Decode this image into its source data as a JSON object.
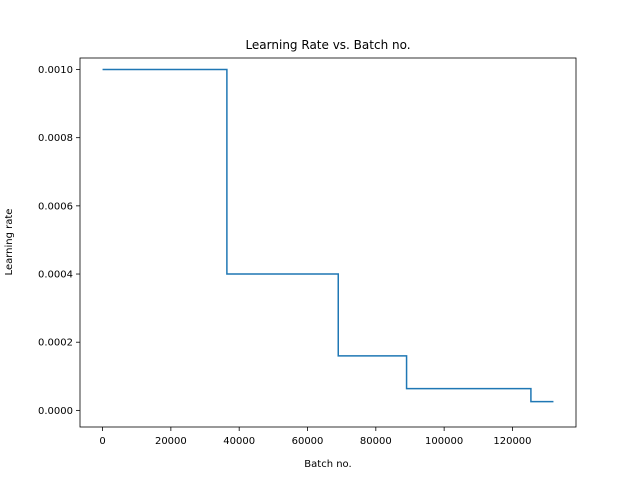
{
  "chart_data": {
    "type": "line",
    "title": "Learning Rate vs. Batch no.",
    "xlabel": "Batch no.",
    "ylabel": "Learning rate",
    "xlim": [
      -6600,
      138600
    ],
    "ylim": [
      -4.875e-05,
      0.00103375
    ],
    "grid": false,
    "legend": "none",
    "xticks": [
      0,
      20000,
      40000,
      60000,
      80000,
      100000,
      120000
    ],
    "xtick_labels": [
      "0",
      "20000",
      "40000",
      "60000",
      "80000",
      "100000",
      "120000"
    ],
    "yticks": [
      0.0,
      0.0002,
      0.0004,
      0.0006,
      0.0008,
      0.001
    ],
    "ytick_labels": [
      "0.0000",
      "0.0002",
      "0.0004",
      "0.0006",
      "0.0008",
      "0.0010"
    ],
    "series": [
      {
        "color": "#1f77b4",
        "x": [
          0,
          36400,
          36400,
          69000,
          69000,
          89000,
          89000,
          125400,
          125400,
          132000
        ],
        "values": [
          0.001,
          0.001,
          0.0004,
          0.0004,
          0.00016,
          0.00016,
          6.4e-05,
          6.4e-05,
          2.56e-05,
          2.56e-05
        ]
      }
    ]
  }
}
